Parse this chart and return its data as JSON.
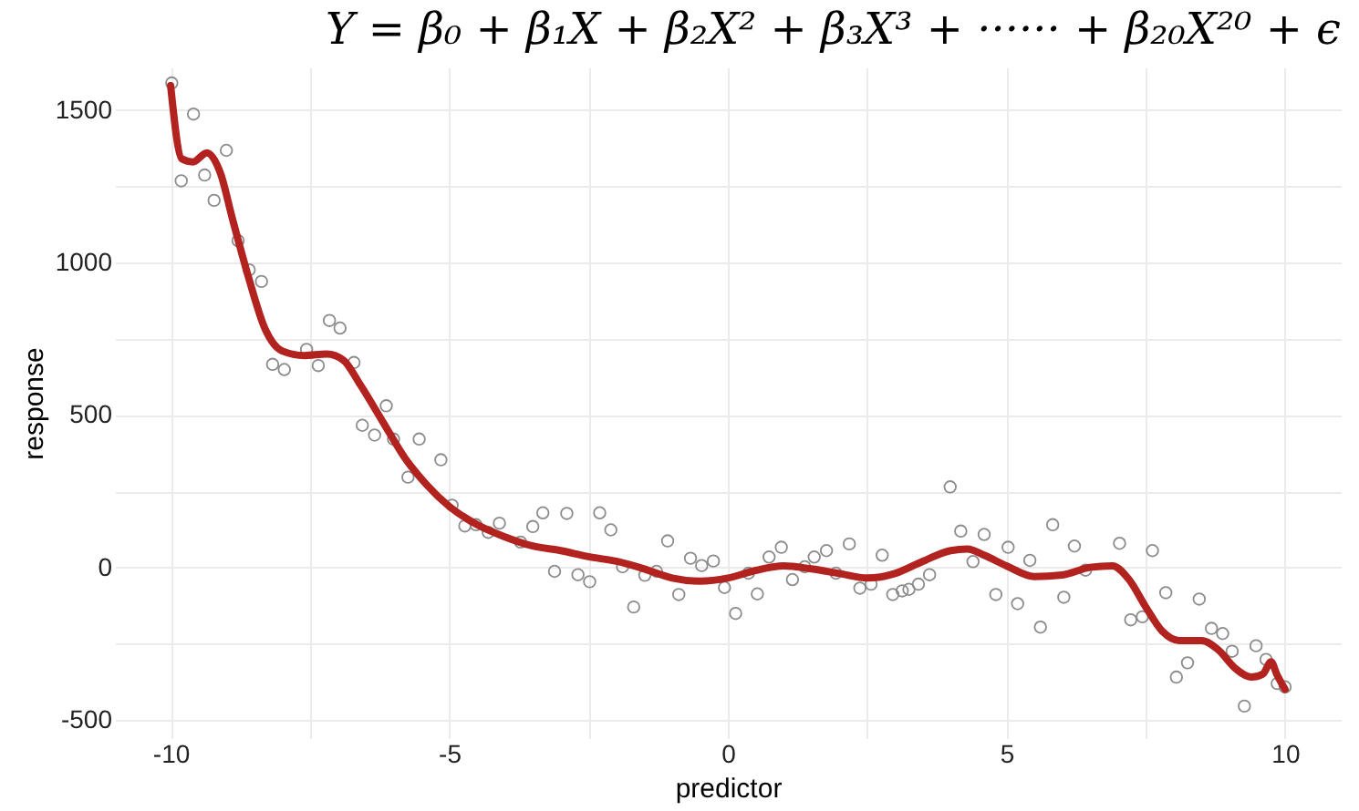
{
  "chart_data": {
    "type": "scatter",
    "title": "Y = β₀ + β₁X + β₂X² + β₃X³ + ······ + β₂₀X²⁰ + ϵ",
    "xlabel": "predictor",
    "ylabel": "response",
    "xlim": [
      -11,
      11
    ],
    "ylim": [
      -560,
      1640
    ],
    "xticks": [
      -10,
      {
        "value": -7.5,
        "label": null
      },
      -5,
      {
        "value": -2.5,
        "label": null
      },
      0,
      {
        "value": 2.5,
        "label": null
      },
      5,
      {
        "value": 7.5,
        "label": null
      },
      10
    ],
    "yticks": [
      -500,
      {
        "value": -250,
        "label": null
      },
      0,
      {
        "value": 250,
        "label": null
      },
      500,
      {
        "value": 750,
        "label": null
      },
      1000,
      {
        "value": 1250,
        "label": null
      },
      1500
    ],
    "grid": true,
    "series": [
      {
        "color": "#8c8c8c",
        "marker": "circle",
        "x": [
          -9.98,
          -9.81,
          -9.59,
          -9.39,
          -9.22,
          -9.0,
          -8.79,
          -8.59,
          -8.37,
          -8.17,
          -7.96,
          -7.56,
          -7.35,
          -7.15,
          -6.96,
          -6.71,
          -6.56,
          -6.34,
          -6.13,
          -6.0,
          -5.74,
          -5.54,
          -5.15,
          -4.95,
          -4.72,
          -4.52,
          -4.3,
          -4.1,
          -3.72,
          -3.5,
          -3.32,
          -3.11,
          -2.89,
          -2.69,
          -2.48,
          -2.3,
          -2.1,
          -1.89,
          -1.69,
          -1.49,
          -1.28,
          -1.08,
          -0.88,
          -0.67,
          -0.47,
          -0.26,
          -0.06,
          0.14,
          0.37,
          0.53,
          0.74,
          0.96,
          1.16,
          1.38,
          1.55,
          1.77,
          1.94,
          2.18,
          2.37,
          2.57,
          2.77,
          2.96,
          3.13,
          3.25,
          3.42,
          3.62,
          3.99,
          4.18,
          4.4,
          4.6,
          4.81,
          5.03,
          5.2,
          5.42,
          5.61,
          5.83,
          6.03,
          6.22,
          6.42,
          7.03,
          7.23,
          7.44,
          7.62,
          7.86,
          8.05,
          8.25,
          8.46,
          8.68,
          8.88,
          9.05,
          9.27,
          9.48,
          9.66,
          9.86,
          10.0
        ],
        "values": [
          1589,
          1268,
          1487,
          1287,
          1204,
          1368,
          1072,
          976,
          938,
          666,
          649,
          715,
          662,
          810,
          785,
          672,
          466,
          434,
          530,
          421,
          296,
          421,
          353,
          204,
          136,
          140,
          115,
          145,
          83,
          134,
          179,
          -13,
          177,
          -24,
          -47,
          179,
          123,
          2,
          -130,
          -26,
          -13,
          87,
          -89,
          30,
          6,
          21,
          -66,
          -151,
          -19,
          -87,
          34,
          66,
          -40,
          2,
          34,
          55,
          -19,
          77,
          -68,
          -55,
          40,
          -89,
          -77,
          -72,
          -55,
          -24,
          264,
          119,
          19,
          108,
          -89,
          66,
          -119,
          23,
          -196,
          140,
          -98,
          70,
          -9,
          79,
          -172,
          -162,
          55,
          -83,
          -360,
          -313,
          -104,
          -200,
          -217,
          -275,
          -455,
          -257,
          -302,
          -381,
          -392
        ]
      },
      {
        "type": "line",
        "color": "#b2221f",
        "line_style": "solid",
        "marker": "none",
        "x": [
          -10,
          -9.8,
          -9.6,
          -9.35,
          -9.1,
          -8.9,
          -8.6,
          -8.3,
          -8.0,
          -7.6,
          -7.2,
          -6.9,
          -6.6,
          -6.2,
          -5.8,
          -5.4,
          -5.0,
          -4.5,
          -4.0,
          -3.5,
          -3.0,
          -2.5,
          -2.0,
          -1.5,
          -1.0,
          -0.5,
          0,
          0.5,
          1.0,
          1.5,
          2.0,
          2.5,
          3.0,
          3.5,
          4.0,
          4.3,
          4.6,
          5.0,
          5.5,
          6.0,
          6.5,
          6.9,
          7.2,
          7.5,
          7.8,
          8.1,
          8.5,
          8.8,
          9.1,
          9.4,
          9.6,
          9.75,
          9.85,
          10
        ],
        "values": [
          1580,
          1340,
          1330,
          1360,
          1290,
          1150,
          950,
          780,
          710,
          695,
          700,
          680,
          600,
          480,
          360,
          270,
          200,
          140,
          100,
          70,
          55,
          35,
          20,
          -5,
          -35,
          -45,
          -35,
          -10,
          5,
          -5,
          -20,
          -35,
          -20,
          20,
          55,
          60,
          40,
          5,
          -30,
          -25,
          0,
          5,
          -40,
          -130,
          -210,
          -240,
          -240,
          -270,
          -330,
          -360,
          -350,
          -310,
          -350,
          -400
        ]
      }
    ]
  }
}
